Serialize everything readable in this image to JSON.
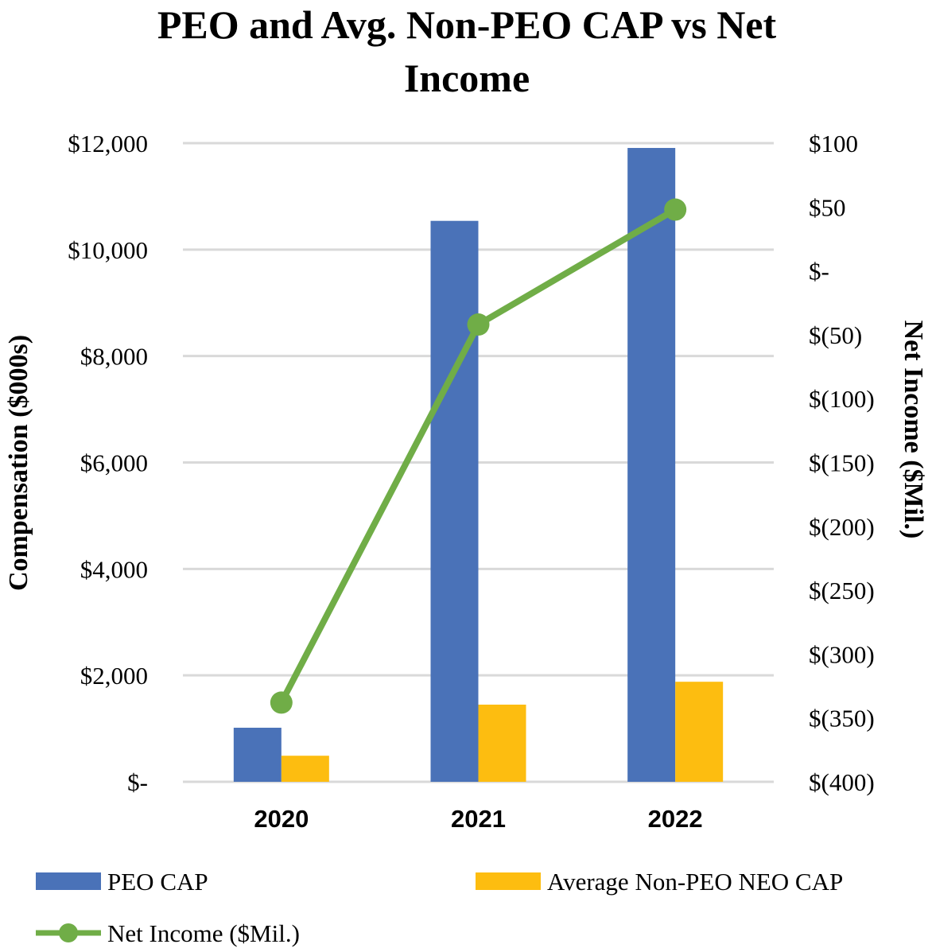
{
  "chart_data": {
    "type": "bar+line",
    "title_lines": [
      "PEO and Avg. Non-PEO CAP vs Net",
      "Income"
    ],
    "categories": [
      "2020",
      "2021",
      "2022"
    ],
    "ylabel_left": "Compensation ($000s)",
    "ylabel_right": "Net Income ($Mil.)",
    "ylim_left": [
      0,
      12000
    ],
    "ylim_right": [
      -400,
      100
    ],
    "left_ticks": [
      "$-",
      "$2,000",
      "$4,000",
      "$6,000",
      "$8,000",
      "$10,000",
      "$12,000"
    ],
    "right_ticks": [
      "$(400)",
      "$(350)",
      "$(300)",
      "$(250)",
      "$(200)",
      "$(150)",
      "$(100)",
      "$(50)",
      "$-",
      "$50",
      "$100"
    ],
    "grid": true,
    "legend_position": "bottom",
    "series": [
      {
        "name": "PEO CAP",
        "kind": "bar",
        "axis": "left",
        "color": "#4a72b8",
        "values": [
          1016,
          10540,
          11910
        ]
      },
      {
        "name": "Average Non-PEO NEO CAP",
        "kind": "bar",
        "axis": "left",
        "color": "#fdbd10",
        "values": [
          490,
          1450,
          1880
        ]
      },
      {
        "name": "Net Income ($Mil.)",
        "kind": "line",
        "axis": "right",
        "color": "#70ad47",
        "values": [
          -338,
          -42,
          48
        ]
      }
    ]
  }
}
